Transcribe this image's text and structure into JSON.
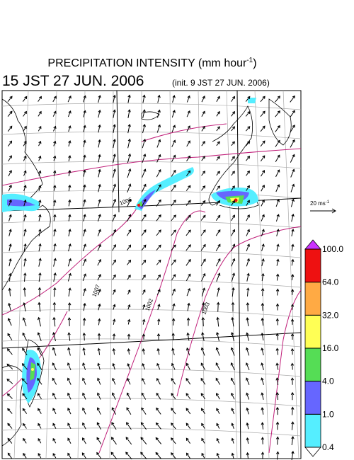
{
  "header": {
    "title": [
      "PRECIPITATION INTENSITY (mm hour",
      "-1",
      ")"
    ],
    "valid_time": "15 JST 27 JUN. 2006",
    "init_time": "(init. 9 JST 27 JUN. 2006)"
  },
  "wind_reference": {
    "label": [
      "20 ms",
      "-1"
    ]
  },
  "map": {
    "contour_labels": [
      "1006",
      "1007",
      "1002",
      "1003"
    ]
  },
  "legend": {
    "levels": [
      {
        "value": 0.4,
        "label": "0.4"
      },
      {
        "value": 1,
        "label": "1.0"
      },
      {
        "value": 4,
        "label": "4.0"
      },
      {
        "value": 16,
        "label": "16.0"
      },
      {
        "value": 32,
        "label": "32.0"
      },
      {
        "value": 64,
        "label": "64.0"
      },
      {
        "value": 100,
        "label": "100.0"
      }
    ],
    "colors": [
      "#55eeff",
      "#6666ff",
      "#55dd55",
      "#ffff55",
      "#ffaa44",
      "#ee1111"
    ],
    "under_color": "#ffffff",
    "over_color": "#cc33ff"
  }
}
